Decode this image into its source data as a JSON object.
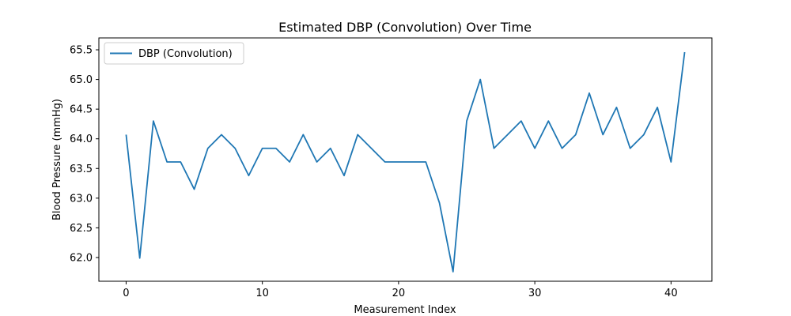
{
  "chart_data": {
    "type": "line",
    "title": "Estimated DBP (Convolution) Over Time",
    "xlabel": "Measurement Index",
    "ylabel": "Blood Pressure (mmHg)",
    "xlim": [
      -2,
      43
    ],
    "ylim": [
      61.6,
      65.7
    ],
    "xticks": [
      0,
      10,
      20,
      30,
      40
    ],
    "yticks": [
      62.0,
      62.5,
      63.0,
      63.5,
      64.0,
      64.5,
      65.0,
      65.5
    ],
    "ytick_labels": [
      "62.0",
      "62.5",
      "63.0",
      "63.5",
      "64.0",
      "64.5",
      "65.0",
      "65.5"
    ],
    "legend_position": "top-left",
    "grid": false,
    "series": [
      {
        "name": "DBP (Convolution)",
        "color": "#1f77b4",
        "x": [
          0,
          1,
          2,
          3,
          4,
          5,
          6,
          7,
          8,
          9,
          10,
          11,
          12,
          13,
          14,
          15,
          16,
          17,
          18,
          19,
          20,
          21,
          22,
          23,
          24,
          25,
          26,
          27,
          28,
          29,
          30,
          31,
          32,
          33,
          34,
          35,
          36,
          37,
          38,
          39,
          40,
          41
        ],
        "y": [
          64.07,
          61.99,
          64.3,
          63.61,
          63.61,
          63.15,
          63.84,
          64.07,
          63.84,
          63.38,
          63.84,
          63.84,
          63.61,
          64.07,
          63.61,
          63.84,
          63.38,
          64.07,
          63.84,
          63.61,
          63.61,
          63.61,
          63.61,
          62.92,
          61.76,
          64.3,
          65.0,
          63.84,
          64.07,
          64.3,
          63.84,
          64.3,
          63.84,
          64.07,
          64.77,
          64.07,
          64.53,
          63.84,
          64.07,
          64.53,
          63.61,
          65.46
        ]
      }
    ]
  }
}
